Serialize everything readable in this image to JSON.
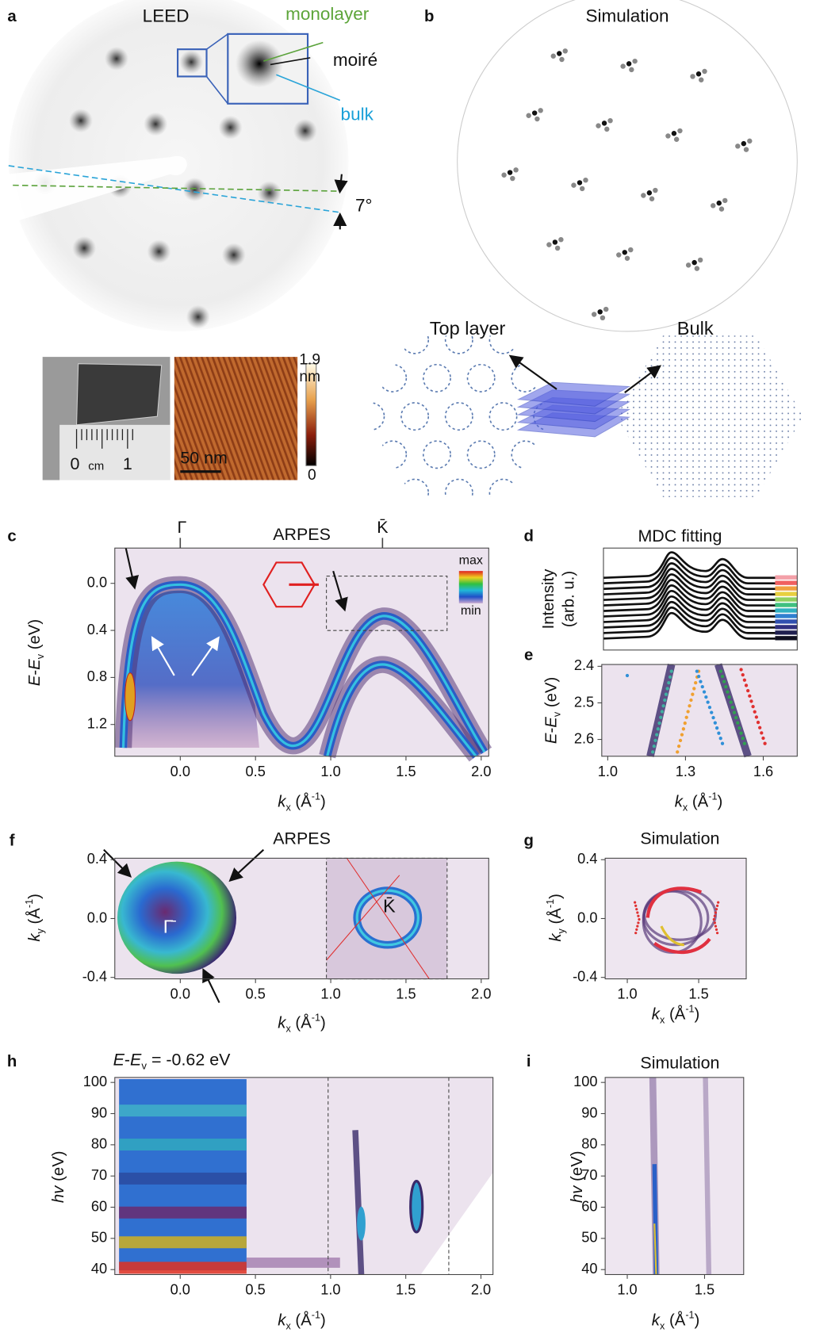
{
  "figure": {
    "a": {
      "letter": "a",
      "title": "LEED",
      "monolayer": "monolayer",
      "moire": "moiré",
      "bulk": "bulk",
      "angle": "7°",
      "ruler": {
        "zero": "0",
        "unit": "cm",
        "one": "1"
      },
      "stm": {
        "scale_bar": "50 nm",
        "cbar_max": 1.9,
        "cbar_unit": "nm",
        "cbar_min": 0
      }
    },
    "b": {
      "letter": "b",
      "title": "Simulation",
      "top_layer": "Top layer",
      "bulk": "Bulk"
    },
    "c": {
      "letter": "c",
      "title": "ARPES",
      "gamma": "Γ",
      "kbar": "K̄",
      "colorbar": {
        "max": "max",
        "min": "min"
      },
      "xlabel": [
        {
          "t": "k",
          "italic": true
        },
        {
          "t": "x",
          "sub": true
        },
        {
          "t": " (Å"
        },
        {
          "t": "-1",
          "sup": true
        },
        {
          "t": ")"
        }
      ],
      "ylabel": [
        {
          "t": "E",
          "italic": true
        },
        {
          "t": "-"
        },
        {
          "t": "E",
          "italic": true
        },
        {
          "t": "v",
          "sub": true
        },
        {
          "t": " (eV)"
        }
      ],
      "xlim": [
        -0.435,
        2.05
      ],
      "ylim": [
        -0.3,
        1.47
      ],
      "xticks": [
        {
          "value": 0,
          "label": "0.0"
        },
        0.5,
        {
          "value": 1,
          "label": "1.0"
        },
        1.5,
        {
          "value": 2,
          "label": "2.0"
        }
      ],
      "yticks": [
        {
          "value": 0,
          "label": "0.0"
        },
        0.4,
        0.8,
        1.2
      ]
    },
    "d": {
      "letter": "d",
      "title": "MDC fitting",
      "ylabel": [
        "Intensity",
        "(arb. u.)"
      ]
    },
    "e": {
      "letter": "e",
      "xlabel": [
        {
          "t": "k",
          "italic": true
        },
        {
          "t": "x",
          "sub": true
        },
        {
          "t": " (Å"
        },
        {
          "t": "-1",
          "sup": true
        },
        {
          "t": ")"
        }
      ],
      "ylabel": [
        {
          "t": "E",
          "italic": true
        },
        {
          "t": "-"
        },
        {
          "t": "E",
          "italic": true
        },
        {
          "t": "v",
          "sub": true
        },
        {
          "t": " (eV)"
        }
      ],
      "xlim": [
        0.977,
        1.731
      ],
      "ylim": [
        2.395,
        2.646
      ],
      "xticks": [
        {
          "value": 1,
          "label": "1.0"
        },
        1.3,
        1.6
      ],
      "yticks": [
        2.4,
        2.5,
        2.6
      ]
    },
    "f": {
      "letter": "f",
      "title": "ARPES",
      "gamma": "Γ̄",
      "kbar": "K̄",
      "xlabel": [
        {
          "t": "k",
          "italic": true
        },
        {
          "t": "x",
          "sub": true
        },
        {
          "t": " (Å"
        },
        {
          "t": "-1",
          "sup": true
        },
        {
          "t": ")"
        }
      ],
      "ylabel": [
        {
          "t": "k",
          "italic": true
        },
        {
          "t": "y",
          "sub": true
        },
        {
          "t": " (Å"
        },
        {
          "t": "-1",
          "sup": true
        },
        {
          "t": ")"
        }
      ],
      "xlim": [
        -0.435,
        2.05
      ],
      "ylim": [
        0.41,
        -0.41
      ],
      "xticks": [
        {
          "value": 0,
          "label": "0.0"
        },
        0.5,
        {
          "value": 1,
          "label": "1.0"
        },
        1.5,
        {
          "value": 2,
          "label": "2.0"
        }
      ],
      "yticks": [
        0.4,
        {
          "value": 0,
          "label": "0.0"
        },
        -0.4
      ]
    },
    "g": {
      "letter": "g",
      "title": "Simulation",
      "xlabel": [
        {
          "t": "k",
          "italic": true
        },
        {
          "t": "x",
          "sub": true
        },
        {
          "t": " (Å"
        },
        {
          "t": "-1",
          "sup": true
        },
        {
          "t": ")"
        }
      ],
      "ylabel": [
        {
          "t": "k",
          "italic": true
        },
        {
          "t": "y",
          "sub": true
        },
        {
          "t": " (Å"
        },
        {
          "t": "-1",
          "sup": true
        },
        {
          "t": ")"
        }
      ],
      "xlim": [
        0.845,
        1.833
      ],
      "ylim": [
        0.41,
        -0.41
      ],
      "xticks": [
        {
          "value": 1,
          "label": "1.0"
        },
        1.5
      ],
      "yticks": [
        0.4,
        {
          "value": 0,
          "label": "0.0"
        },
        -0.4
      ]
    },
    "h": {
      "letter": "h",
      "header": [
        {
          "t": "E",
          "italic": true
        },
        {
          "t": "-"
        },
        {
          "t": "E",
          "italic": true
        },
        {
          "t": "v",
          "sub": true
        },
        {
          "t": " = -0.62 eV"
        }
      ],
      "xlabel": [
        {
          "t": "k",
          "italic": true
        },
        {
          "t": "x",
          "sub": true
        },
        {
          "t": " (Å"
        },
        {
          "t": "-1",
          "sup": true
        },
        {
          "t": ")"
        }
      ],
      "ylabel": [
        {
          "t": "hv",
          "italic": true
        },
        {
          "t": " (eV)"
        }
      ],
      "xlim": [
        -0.435,
        2.08
      ],
      "ylim": [
        101.6,
        38.4
      ],
      "xticks": [
        {
          "value": 0,
          "label": "0.0"
        },
        0.5,
        {
          "value": 1,
          "label": "1.0"
        },
        1.5,
        {
          "value": 2,
          "label": "2.0"
        }
      ],
      "yticks": [
        100,
        90,
        80,
        70,
        60,
        50,
        40
      ]
    },
    "i": {
      "letter": "i",
      "title": "Simulation",
      "xlabel": [
        {
          "t": "k",
          "italic": true
        },
        {
          "t": "x",
          "sub": true
        },
        {
          "t": " (Å"
        },
        {
          "t": "-1",
          "sup": true
        },
        {
          "t": ")"
        }
      ],
      "ylabel": [
        {
          "t": "hv",
          "italic": true
        },
        {
          "t": " (eV)"
        }
      ],
      "xlim": [
        0.857,
        1.753
      ],
      "ylim": [
        101.6,
        38.4
      ],
      "xticks": [
        {
          "value": 1,
          "label": "1.0"
        },
        1.5
      ],
      "yticks": [
        100,
        90,
        80,
        70,
        60,
        50,
        40
      ]
    }
  }
}
